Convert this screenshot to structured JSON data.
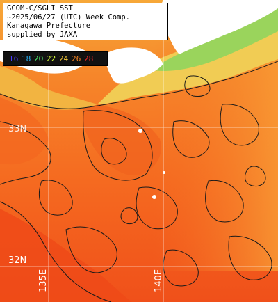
{
  "title_lines": [
    "GCOM-C/SGLI SST",
    "~2025/06/27 (UTC) Week Comp.",
    "Kanagawa Prefecture",
    "supplied by JAXA"
  ],
  "color_scale": {
    "labels": [
      {
        "text": "16",
        "color": "#4a3cff"
      },
      {
        "text": "18",
        "color": "#29b8ff"
      },
      {
        "text": "20",
        "color": "#55ff77"
      },
      {
        "text": "22",
        "color": "#d8ff3a"
      },
      {
        "text": "24",
        "color": "#ffd23a"
      },
      {
        "text": "26",
        "color": "#ff8a24"
      },
      {
        "text": "28",
        "color": "#ff2a2a"
      }
    ]
  },
  "grid_labels": {
    "lat_top": "33N",
    "lat_bottom": "32N",
    "lon_left": "135E",
    "lon_right": "140E"
  },
  "colors": {
    "sea_warm": "#f45a1c",
    "sea_mid": "#f57a22",
    "sea_cool": "#f7a030",
    "coast_yellow": "#e8d95a",
    "coast_green": "#8fd35a",
    "land": "#ffffff",
    "grid": "#ffffff"
  }
}
